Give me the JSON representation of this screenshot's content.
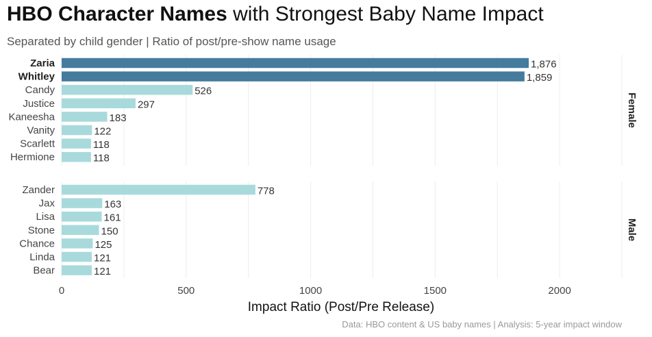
{
  "header": {
    "title_bold": "HBO Character Names",
    "title_rest": " with Strongest Baby Name Impact",
    "subtitle": "Separated by child gender | Ratio of post/pre-show name usage",
    "caption": "Data: HBO content & US baby names | Analysis: 5-year impact window"
  },
  "colors": {
    "highlight": "#457b9d",
    "normal": "#a8dadc"
  },
  "chart_data": {
    "type": "bar",
    "orientation": "horizontal",
    "xlabel": "Impact Ratio (Post/Pre Release)",
    "xlim": [
      0,
      2250
    ],
    "xticks": [
      0,
      500,
      1000,
      1500,
      2000
    ],
    "xtick_labels": [
      "0",
      "500",
      "1000",
      "1500",
      "2000"
    ],
    "grid": true,
    "facets": [
      {
        "label": "Female",
        "categories": [
          "Zaria",
          "Whitley",
          "Candy",
          "Justice",
          "Kaneesha",
          "Vanity",
          "Scarlett",
          "Hermione"
        ],
        "values": [
          1876,
          1859,
          526,
          297,
          183,
          122,
          118,
          118
        ],
        "value_labels": [
          "1,876",
          "1,859",
          "526",
          "297",
          "183",
          "122",
          "118",
          "118"
        ],
        "highlight": [
          true,
          true,
          false,
          false,
          false,
          false,
          false,
          false
        ]
      },
      {
        "label": "Male",
        "categories": [
          "Zander",
          "Jax",
          "Lisa",
          "Stone",
          "Chance",
          "Linda",
          "Bear"
        ],
        "values": [
          778,
          163,
          161,
          150,
          125,
          121,
          121
        ],
        "value_labels": [
          "778",
          "163",
          "161",
          "150",
          "125",
          "121",
          "121"
        ],
        "highlight": [
          false,
          false,
          false,
          false,
          false,
          false,
          false
        ]
      }
    ]
  }
}
